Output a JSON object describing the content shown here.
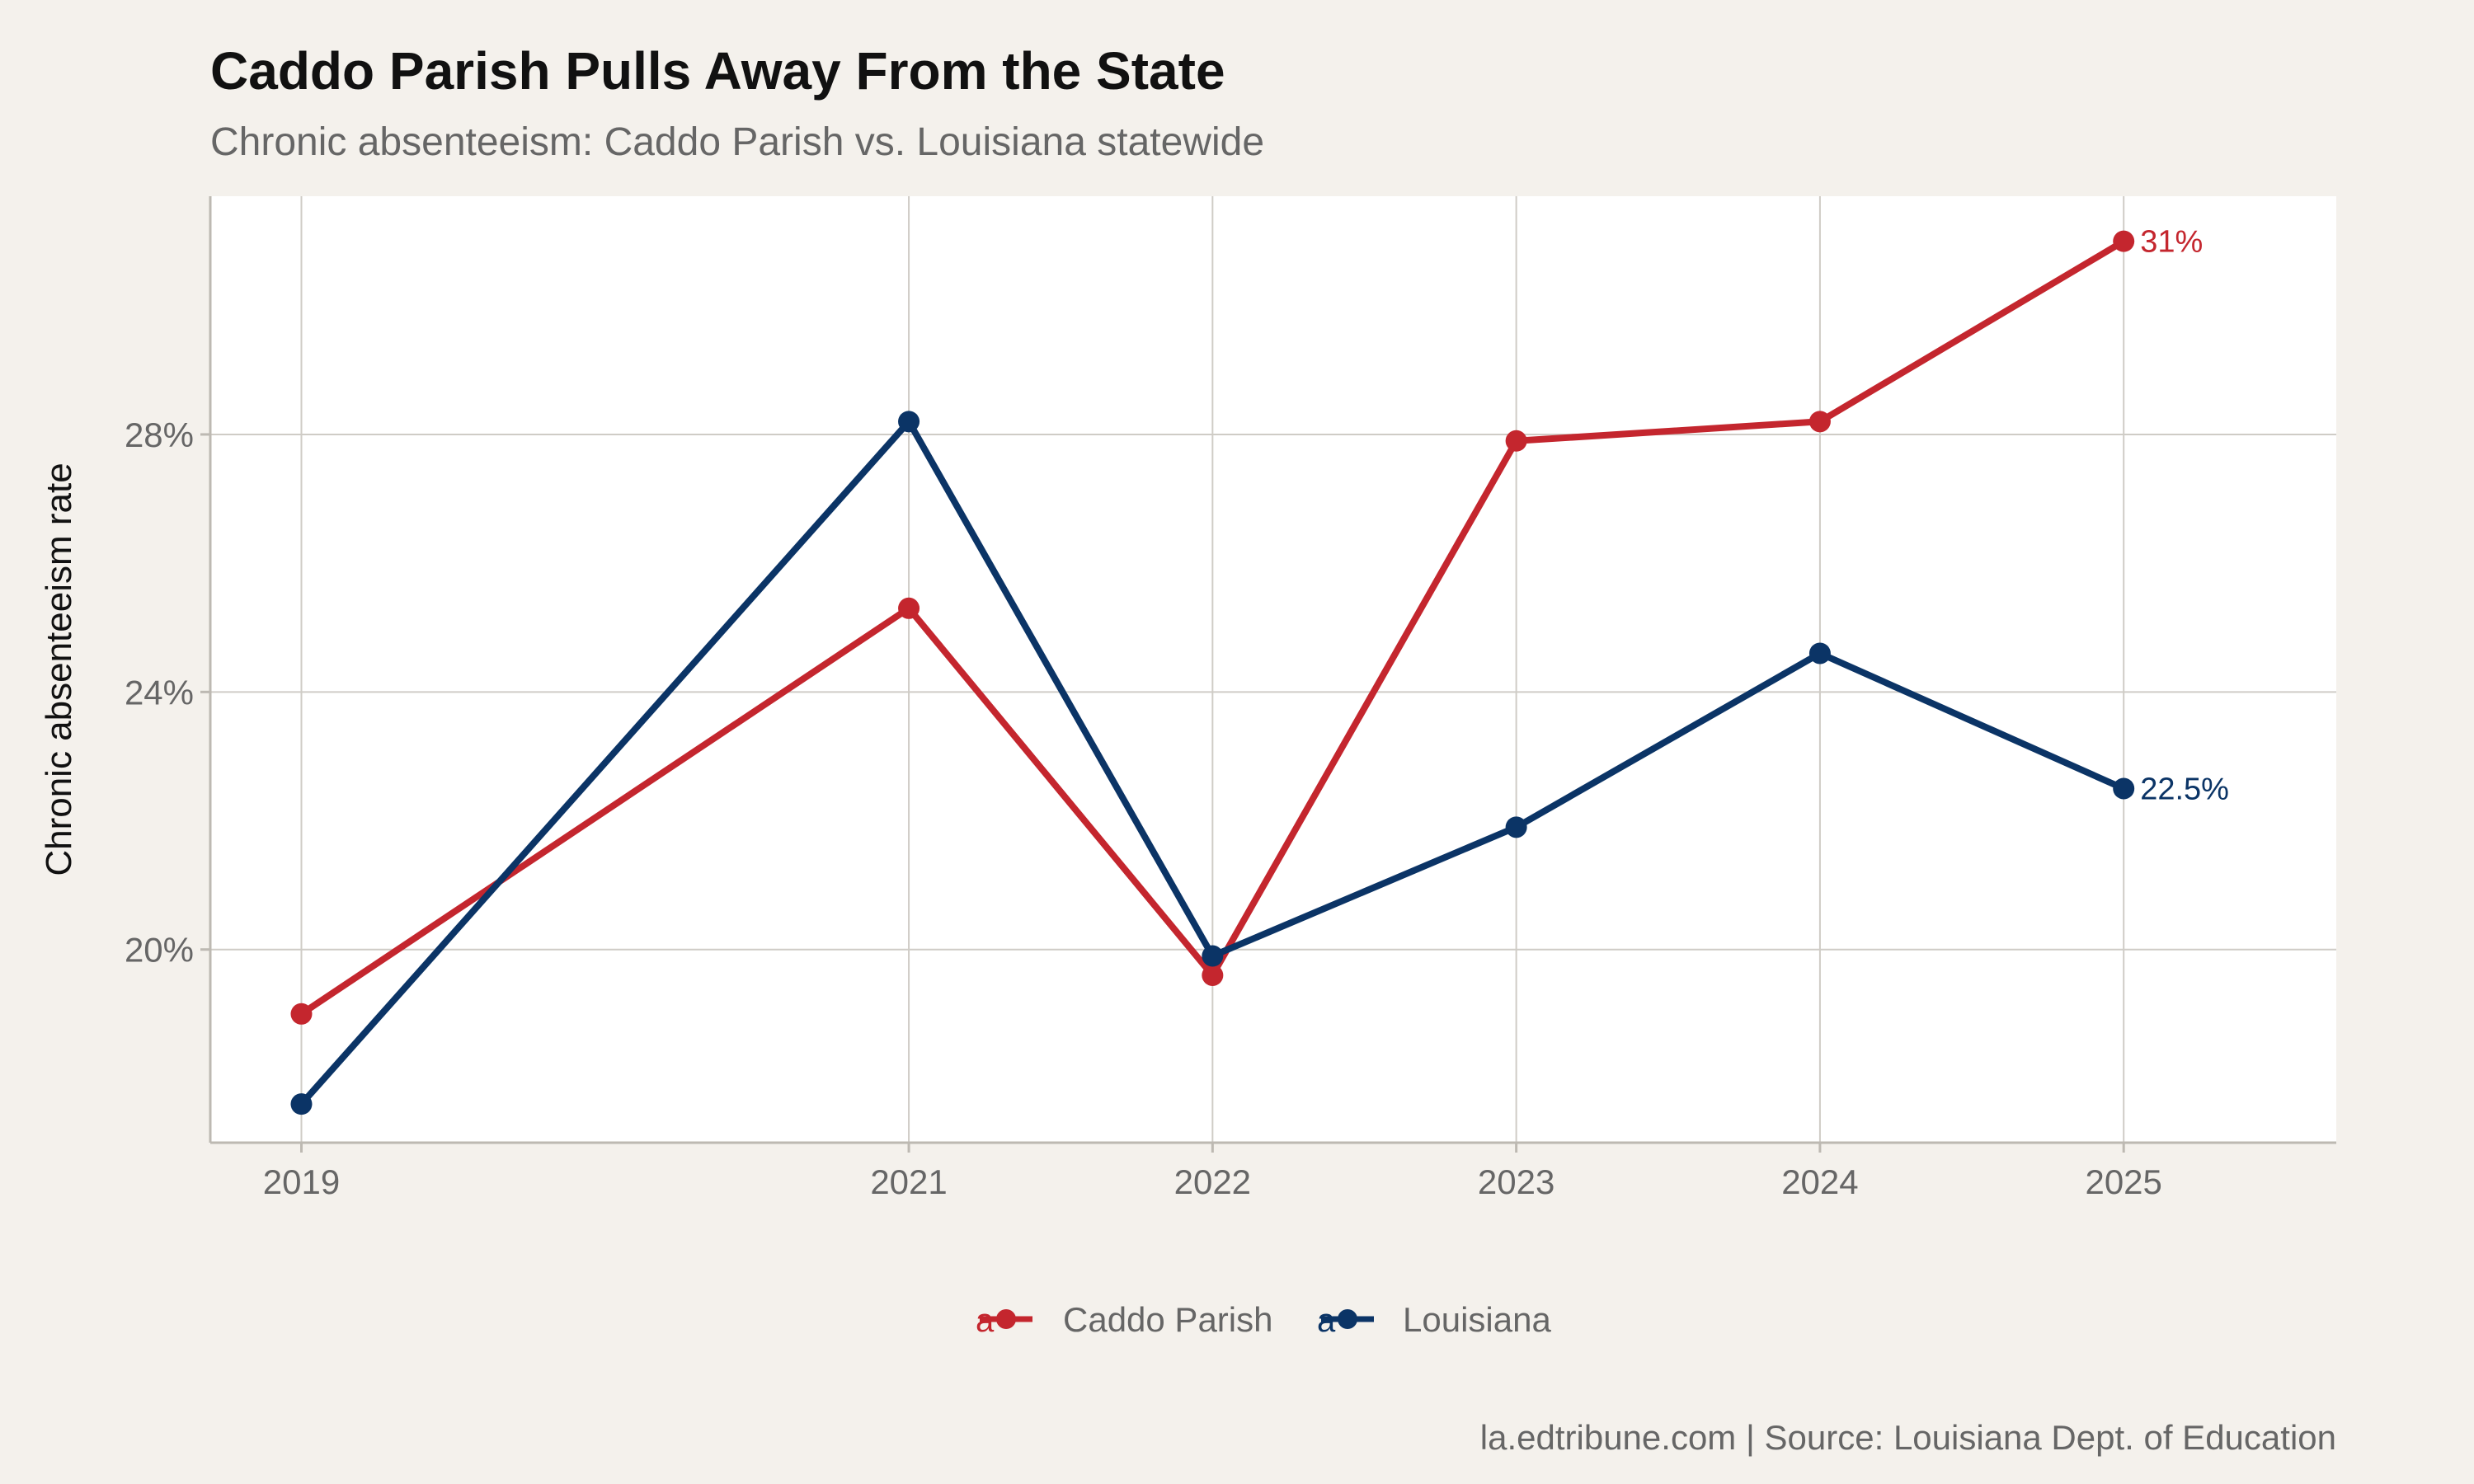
{
  "title": "Caddo Parish Pulls Away From the State",
  "subtitle": "Chronic absenteeism: Caddo Parish vs. Louisiana statewide",
  "caption": "la.edtribune.com | Source: Louisiana Dept. of Education",
  "legend_key_glyph": "a",
  "colors": {
    "background": "#F4F1EC",
    "panel": "#FFFFFF",
    "grid": "#CFCCC6",
    "caddo": "#C4262E",
    "louisiana": "#0B3466"
  },
  "chart_data": {
    "type": "line",
    "ylabel": "Chronic absenteeism rate",
    "xlabel": "",
    "x": [
      2019,
      2021,
      2022,
      2023,
      2024,
      2025
    ],
    "x_tick_labels": [
      "2019",
      "2021",
      "2022",
      "2023",
      "2024",
      "2025"
    ],
    "xlim": [
      2018.7,
      2025.7
    ],
    "y_ticks": [
      20,
      24,
      28
    ],
    "y_tick_labels": [
      "20%",
      "24%",
      "28%"
    ],
    "ylim": [
      17,
      31.7
    ],
    "grid": true,
    "legend_position": "bottom",
    "series": [
      {
        "name": "Caddo Parish",
        "color": "#C4262E",
        "values": [
          19.0,
          25.3,
          19.6,
          27.9,
          28.2,
          31.0
        ],
        "end_label": "31%"
      },
      {
        "name": "Louisiana",
        "color": "#0B3466",
        "values": [
          17.6,
          28.2,
          19.9,
          21.9,
          24.6,
          22.5
        ],
        "end_label": "22.5%"
      }
    ]
  }
}
